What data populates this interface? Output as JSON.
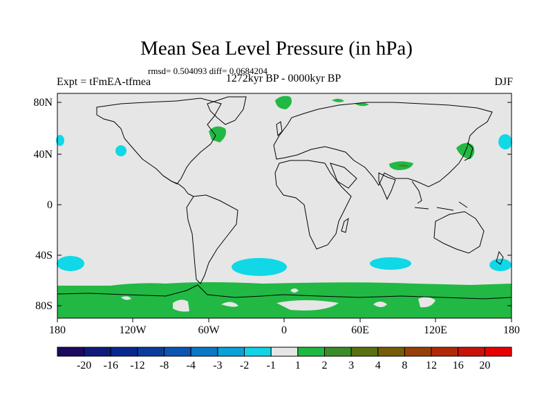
{
  "title": "Mean Sea Level Pressure (in hPa)",
  "stats": "rmsd= 0.504093 diff= 0.0684204",
  "experiment": "Expt = tFmEA-tfmea",
  "period": "1272kyr BP - 0000kyr BP",
  "season": "DJF",
  "map": {
    "lat_ticks": [
      "80N",
      "40N",
      "0",
      "40S",
      "80S"
    ],
    "lon_ticks": [
      "180",
      "120W",
      "60W",
      "0",
      "60E",
      "120E",
      "180"
    ],
    "background_color": "#e6e6e6",
    "land_outline_color": "#000000"
  },
  "colorbar": {
    "labels": [
      "-20",
      "-16",
      "-12",
      "-8",
      "-4",
      "-3",
      "-2",
      "-1",
      "1",
      "2",
      "3",
      "4",
      "8",
      "12",
      "16",
      "20"
    ],
    "colors": [
      "#1c0a5e",
      "#101a7c",
      "#08288e",
      "#0a3c9c",
      "#0a56b0",
      "#0a78c4",
      "#0aa0d8",
      "#10d4e6",
      "#e6e6e6",
      "#20b840",
      "#3c8c28",
      "#587010",
      "#785a08",
      "#964008",
      "#b02808",
      "#c81408",
      "#e60000"
    ]
  },
  "anomaly_colors": {
    "negative": "#10d8e6",
    "positive": "#22b844",
    "strong_positive": "#3c8c28"
  }
}
